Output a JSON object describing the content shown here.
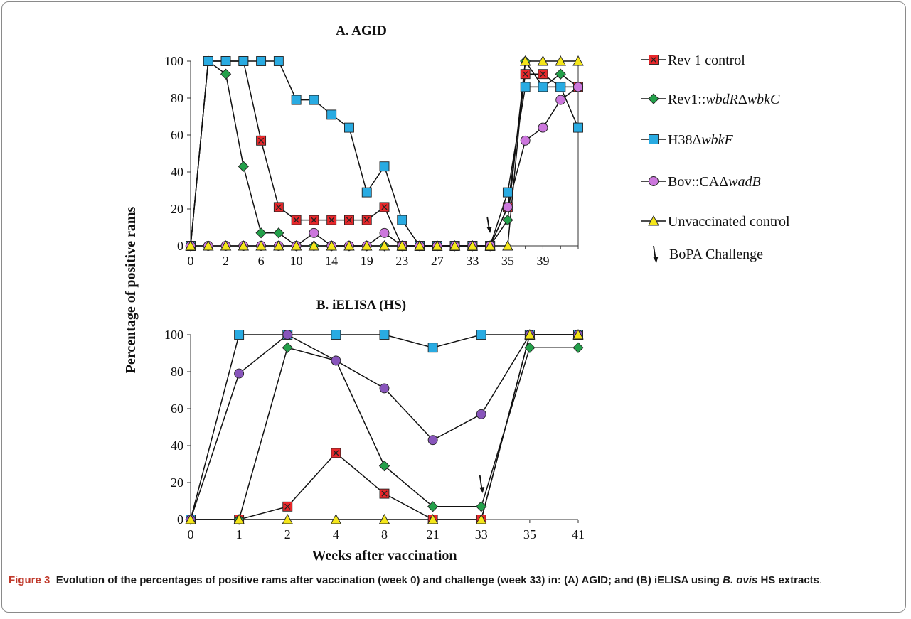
{
  "chart_data": [
    {
      "type": "line",
      "title": "A. AGID",
      "ylabel": "Percentage of positive rams",
      "xlabel": "",
      "ylim": [
        0,
        100
      ],
      "yticks": [
        0,
        20,
        40,
        60,
        80,
        100
      ],
      "x": [
        0,
        1,
        2,
        4,
        6,
        8,
        10,
        12,
        14,
        16,
        19,
        21,
        23,
        25,
        27,
        29,
        31,
        33,
        34,
        35,
        37,
        39,
        41
      ],
      "xticklabels": [
        "0",
        "2",
        "6",
        "10",
        "14",
        "19",
        "23",
        "27",
        "33",
        "35",
        "39"
      ],
      "legend_position": "right",
      "annotation": {
        "label": "BoPA Challenge",
        "x": 33
      },
      "series": [
        {
          "name": "Rev 1 control",
          "marker": "x-square",
          "color": "#e8282b",
          "values": [
            0,
            100,
            100,
            100,
            57,
            21,
            14,
            14,
            14,
            14,
            14,
            21,
            0,
            0,
            0,
            0,
            0,
            0,
            21,
            93,
            93,
            86,
            86
          ]
        },
        {
          "name": "Rev1::wbdRΔwbkC",
          "marker": "diamond",
          "color": "#23a04a",
          "values": [
            0,
            100,
            93,
            43,
            7,
            7,
            0,
            0,
            0,
            0,
            0,
            0,
            0,
            0,
            0,
            0,
            0,
            0,
            14,
            100,
            86,
            93,
            86
          ]
        },
        {
          "name": "H38ΔwbkF",
          "marker": "square",
          "color": "#29abe2",
          "values": [
            0,
            100,
            100,
            100,
            100,
            100,
            79,
            79,
            71,
            64,
            29,
            43,
            14,
            0,
            0,
            0,
            0,
            0,
            29,
            86,
            86,
            86,
            64
          ]
        },
        {
          "name": "Bov::CAΔwadB",
          "marker": "circle",
          "color": "#cc77dd",
          "values": [
            0,
            0,
            0,
            0,
            0,
            0,
            0,
            7,
            0,
            0,
            0,
            7,
            0,
            0,
            0,
            0,
            0,
            0,
            21,
            57,
            64,
            79,
            86
          ]
        },
        {
          "name": "Unvaccinated control",
          "marker": "triangle",
          "color": "#f4e61a",
          "values": [
            0,
            0,
            0,
            0,
            0,
            0,
            0,
            0,
            0,
            0,
            0,
            0,
            0,
            0,
            0,
            0,
            0,
            0,
            0,
            100,
            100,
            100,
            100
          ]
        }
      ]
    },
    {
      "type": "line",
      "title": "B. iELISA (HS)",
      "ylabel": "Percentage of positive rams",
      "xlabel": "Weeks after vaccination",
      "ylim": [
        0,
        100
      ],
      "yticks": [
        0,
        20,
        40,
        60,
        80,
        100
      ],
      "categories": [
        "0",
        "1",
        "2",
        "4",
        "8",
        "21",
        "33",
        "35",
        "41"
      ],
      "annotation": {
        "x": "33"
      },
      "series": [
        {
          "name": "Rev 1 control",
          "marker": "x-square",
          "color": "#e8282b",
          "values": [
            0,
            0,
            7,
            36,
            14,
            0,
            0,
            100,
            100
          ]
        },
        {
          "name": "Rev1::wbdRΔwbkC",
          "marker": "diamond",
          "color": "#23a04a",
          "values": [
            0,
            0,
            93,
            86,
            29,
            7,
            7,
            93,
            93
          ]
        },
        {
          "name": "H38ΔwbkF",
          "marker": "square",
          "color": "#29abe2",
          "values": [
            0,
            100,
            100,
            100,
            100,
            93,
            100,
            100,
            100
          ]
        },
        {
          "name": "Bov::CAΔwadB",
          "marker": "circle",
          "color": "#8855bb",
          "values": [
            0,
            79,
            100,
            86,
            71,
            43,
            57,
            100,
            100
          ]
        },
        {
          "name": "Unvaccinated control",
          "marker": "triangle",
          "color": "#f4e61a",
          "values": [
            0,
            0,
            0,
            0,
            0,
            0,
            0,
            100,
            100
          ]
        }
      ]
    }
  ],
  "legend": {
    "items": [
      {
        "marker": "x-square",
        "color": "#e8282b",
        "text": "Rev 1 control"
      },
      {
        "marker": "diamond",
        "color": "#23a04a",
        "prefix": "Rev1::",
        "italic": "wbdR",
        "mid": "Δ",
        "italic2": "wbkC"
      },
      {
        "marker": "square",
        "color": "#29abe2",
        "prefix": "H38Δ",
        "italic": "wbkF"
      },
      {
        "marker": "circle",
        "color": "#cc77dd",
        "prefix": "Bov::CAΔ",
        "italic": "wadB"
      },
      {
        "marker": "triangle",
        "color": "#f4e61a",
        "text": "Unvaccinated control"
      }
    ],
    "challenge_label": "BoPA Challenge"
  },
  "caption": {
    "figure_label": "Figure 3",
    "text_part1": "Evolution of the percentages of positive rams after vaccination (week 0) and challenge (week 33) in: (A) AGID; and (B) iELISA using ",
    "italic": "B. ovis",
    "text_part2": " HS extracts",
    "end": "."
  }
}
